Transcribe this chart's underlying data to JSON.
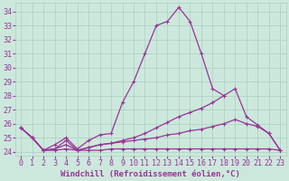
{
  "xlabel": "Windchill (Refroidissement éolien,°C)",
  "bg_color": "#cce8dc",
  "line_color": "#993399",
  "grid_color": "#aacfbf",
  "xlim": [
    -0.5,
    23.5
  ],
  "ylim": [
    23.7,
    34.6
  ],
  "yticks": [
    24,
    25,
    26,
    27,
    28,
    29,
    30,
    31,
    32,
    33,
    34
  ],
  "xticks": [
    0,
    1,
    2,
    3,
    4,
    5,
    6,
    7,
    8,
    9,
    10,
    11,
    12,
    13,
    14,
    15,
    16,
    17,
    18,
    19,
    20,
    21,
    22,
    23
  ],
  "lines": [
    {
      "x": [
        0,
        1,
        2,
        3,
        4,
        5,
        6,
        7,
        8,
        9,
        10,
        11,
        12,
        13,
        14,
        15,
        16,
        17,
        18,
        19,
        20,
        21,
        22,
        23
      ],
      "y": [
        25.7,
        25.0,
        24.1,
        24.5,
        25.0,
        24.2,
        24.8,
        25.2,
        25.3,
        27.5,
        29.0,
        31.0,
        33.0,
        33.3,
        34.3,
        33.3,
        31.0,
        28.5,
        28.0,
        null,
        null,
        null,
        null,
        null
      ]
    },
    {
      "x": [
        0,
        1,
        2,
        3,
        4,
        5,
        6,
        7,
        8,
        9,
        10,
        11,
        12,
        13,
        14,
        15,
        16,
        17,
        18,
        19,
        20,
        21,
        22,
        23
      ],
      "y": [
        25.7,
        25.0,
        24.1,
        24.2,
        24.5,
        24.1,
        24.3,
        24.5,
        24.6,
        24.8,
        25.0,
        25.3,
        25.7,
        26.1,
        26.5,
        26.8,
        27.1,
        27.5,
        28.0,
        28.5,
        26.5,
        25.9,
        25.3,
        24.1
      ]
    },
    {
      "x": [
        0,
        1,
        2,
        3,
        4,
        5,
        6,
        7,
        8,
        9,
        10,
        11,
        12,
        13,
        14,
        15,
        16,
        17,
        18,
        19,
        20,
        21,
        22,
        23
      ],
      "y": [
        25.7,
        25.0,
        24.1,
        24.2,
        24.8,
        24.1,
        24.3,
        24.5,
        24.6,
        24.7,
        24.8,
        24.9,
        25.0,
        25.2,
        25.3,
        25.5,
        25.6,
        25.8,
        26.0,
        26.3,
        26.0,
        25.8,
        25.3,
        24.1
      ]
    },
    {
      "x": [
        0,
        1,
        2,
        3,
        4,
        5,
        6,
        7,
        8,
        9,
        10,
        11,
        12,
        13,
        14,
        15,
        16,
        17,
        18,
        19,
        20,
        21,
        22,
        23
      ],
      "y": [
        25.7,
        25.0,
        24.1,
        24.1,
        24.2,
        24.1,
        24.1,
        24.1,
        24.2,
        24.2,
        24.2,
        24.2,
        24.2,
        24.2,
        24.2,
        24.2,
        24.2,
        24.2,
        24.2,
        24.2,
        24.2,
        24.2,
        24.2,
        24.1
      ]
    }
  ],
  "xlabel_fontsize": 6.5,
  "tick_fontsize": 6,
  "lw": 0.9,
  "markersize": 2.5
}
